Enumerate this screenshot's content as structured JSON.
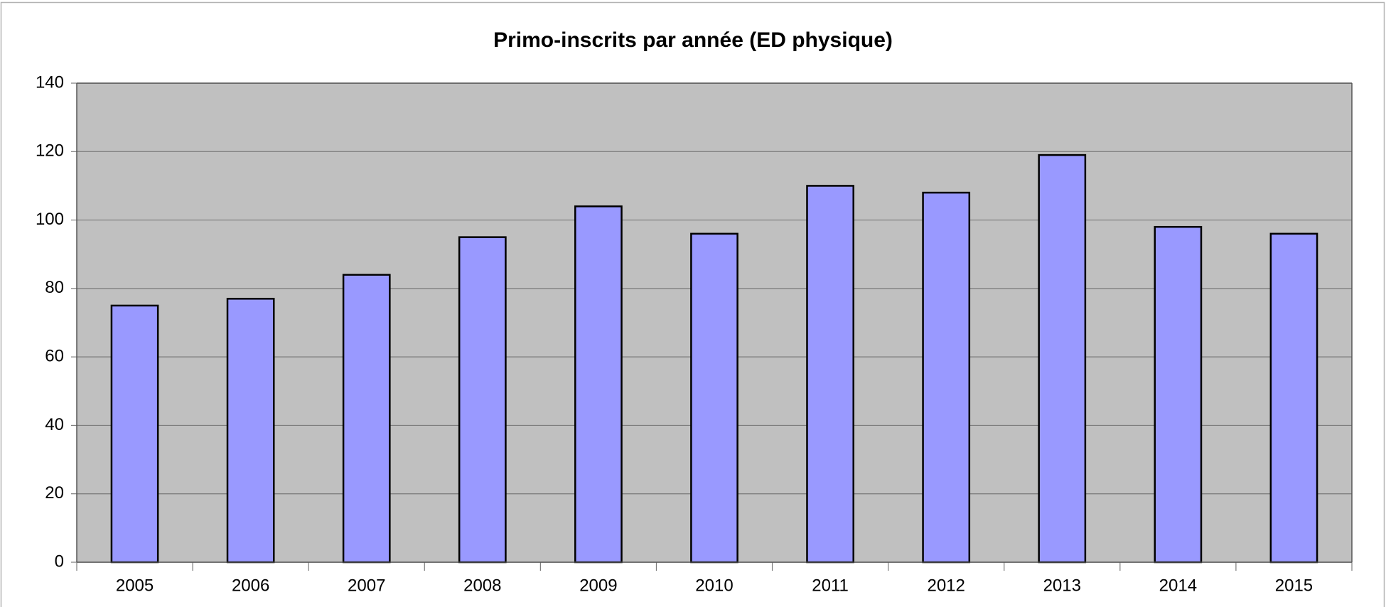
{
  "chart_data": {
    "type": "bar",
    "title": "Primo-inscrits par année (ED physique)",
    "categories": [
      "2005",
      "2006",
      "2007",
      "2008",
      "2009",
      "2010",
      "2011",
      "2012",
      "2013",
      "2014",
      "2015"
    ],
    "values": [
      75,
      77,
      84,
      95,
      104,
      96,
      110,
      108,
      119,
      98,
      96
    ],
    "color": "#9999ff",
    "ylim": [
      0,
      140
    ],
    "yticks": [
      0,
      20,
      40,
      60,
      80,
      100,
      120,
      140
    ],
    "grid": true
  }
}
